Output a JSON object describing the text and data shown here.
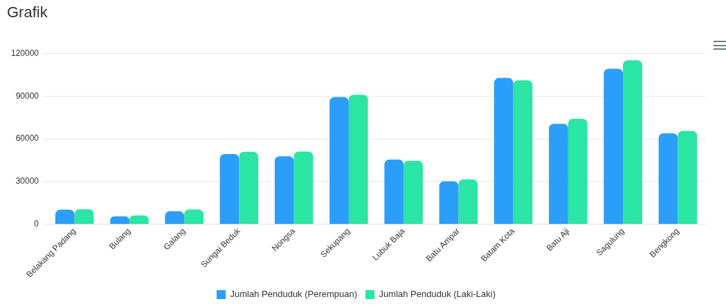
{
  "chart_data": {
    "type": "bar",
    "title": "Grafik",
    "categories": [
      "Belakang Padang",
      "Bulang",
      "Galang",
      "Sungai Beduk",
      "Nongsa",
      "Sekupang",
      "Lubuk Baja",
      "Batu Ampar",
      "Batam Kota",
      "Batu Aji",
      "Sagulung",
      "Bengkong"
    ],
    "series": [
      {
        "name": "Jumlah Penduduk (Perempuan)",
        "color": "#2b9ef9",
        "values": [
          10300,
          5600,
          9300,
          49400,
          47800,
          89400,
          45500,
          30200,
          102800,
          70600,
          109300,
          63900
        ]
      },
      {
        "name": "Jumlah Penduduk (Laki-Laki)",
        "color": "#2ae5a3",
        "values": [
          10600,
          6200,
          10500,
          50900,
          51100,
          91000,
          44700,
          31500,
          101200,
          74100,
          115200,
          65600
        ]
      }
    ],
    "ylim": [
      0,
      120000
    ],
    "yticks": [
      0,
      30000,
      60000,
      90000,
      120000
    ],
    "grid": "y",
    "legend": "bottom"
  }
}
